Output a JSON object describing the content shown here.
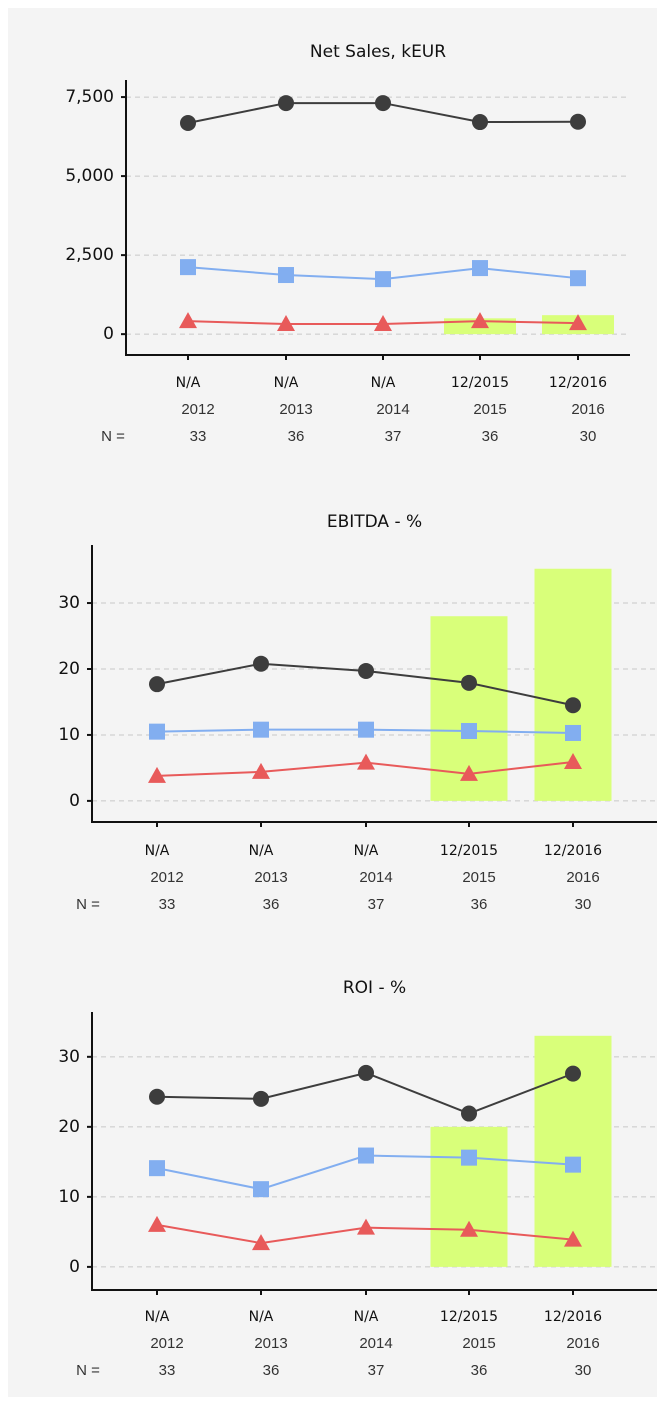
{
  "chart_data": [
    {
      "type": "line",
      "title": "Net Sales, kEUR",
      "categories": [
        "N/A",
        "N/A",
        "N/A",
        "12/2015",
        "12/2016"
      ],
      "years": [
        "2012",
        "2013",
        "2014",
        "2015",
        "2016"
      ],
      "n_label": "N =",
      "n_values": [
        33,
        36,
        37,
        36,
        30
      ],
      "ylim": [
        -660,
        8040
      ],
      "yticks": [
        0,
        {
          "value": 2500,
          "label": "2,500"
        },
        {
          "value": 5000,
          "label": "5,000"
        },
        {
          "value": 7500,
          "label": "7,500"
        }
      ],
      "grid": true,
      "series": [
        {
          "type": "bar",
          "color": "#d9ff7a",
          "values": [
            null,
            null,
            null,
            500,
            600
          ]
        },
        {
          "marker": "circle",
          "color": "#3d3d3d",
          "values": [
            6680,
            7310,
            7310,
            6710,
            6720
          ]
        },
        {
          "marker": "square",
          "color": "#82aef0",
          "values": [
            2120,
            1870,
            1740,
            2090,
            1770
          ]
        },
        {
          "marker": "triangle",
          "color": "#e85a5a",
          "values": [
            410,
            320,
            320,
            410,
            350
          ]
        }
      ]
    },
    {
      "type": "line",
      "title": "EBITDA - %",
      "categories": [
        "N/A",
        "N/A",
        "N/A",
        "12/2015",
        "12/2016"
      ],
      "years": [
        "2012",
        "2013",
        "2014",
        "2015",
        "2016"
      ],
      "n_label": "N =",
      "n_values": [
        33,
        36,
        37,
        36,
        30
      ],
      "ylim": [
        -3.2,
        38.8
      ],
      "yticks": [
        0,
        10,
        20,
        30
      ],
      "grid": true,
      "series": [
        {
          "type": "bar",
          "color": "#d9ff7a",
          "values": [
            null,
            null,
            null,
            28.0,
            35.2
          ]
        },
        {
          "marker": "circle",
          "color": "#3d3d3d",
          "values": [
            17.7,
            20.8,
            19.7,
            17.9,
            14.5
          ]
        },
        {
          "marker": "square",
          "color": "#82aef0",
          "values": [
            10.5,
            10.8,
            10.8,
            10.6,
            10.3
          ]
        },
        {
          "marker": "triangle",
          "color": "#e85a5a",
          "values": [
            3.8,
            4.4,
            5.8,
            4.1,
            5.9
          ]
        }
      ]
    },
    {
      "type": "line",
      "title": "ROI - %",
      "categories": [
        "N/A",
        "N/A",
        "N/A",
        "12/2015",
        "12/2016"
      ],
      "years": [
        "2012",
        "2013",
        "2014",
        "2015",
        "2016"
      ],
      "n_label": "N =",
      "n_values": [
        33,
        36,
        37,
        36,
        30
      ],
      "ylim": [
        -3.3,
        36.4
      ],
      "yticks": [
        0,
        10,
        20,
        30
      ],
      "grid": true,
      "series": [
        {
          "type": "bar",
          "color": "#d9ff7a",
          "values": [
            null,
            null,
            null,
            20.0,
            33.0
          ]
        },
        {
          "marker": "circle",
          "color": "#3d3d3d",
          "values": [
            24.3,
            24.0,
            27.7,
            21.9,
            27.6
          ]
        },
        {
          "marker": "square",
          "color": "#82aef0",
          "values": [
            14.1,
            11.1,
            15.9,
            15.6,
            14.6
          ]
        },
        {
          "marker": "triangle",
          "color": "#e85a5a",
          "values": [
            6.0,
            3.4,
            5.6,
            5.3,
            3.9
          ]
        }
      ]
    }
  ]
}
